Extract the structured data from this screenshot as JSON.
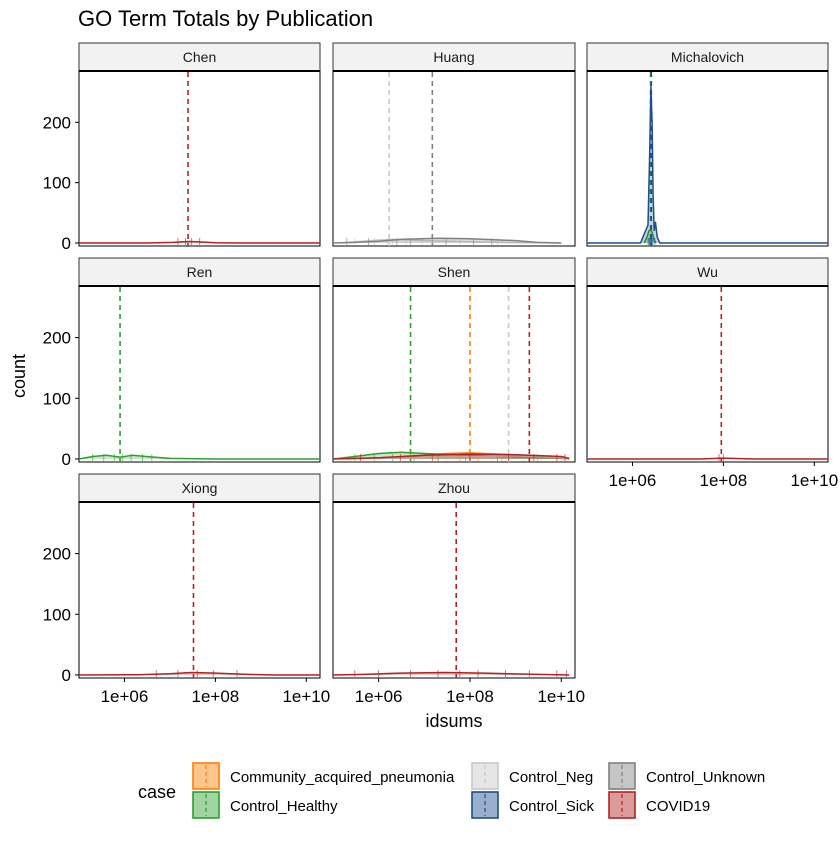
{
  "title": "GO Term Totals by Publication",
  "chart_data": {
    "type": "area",
    "subtype": "faceted density with mean lines and rug",
    "title": "GO Term Totals by Publication",
    "xlabel": "idsums",
    "ylabel": "count",
    "x_scale": "log10",
    "xlim": [
      100000,
      20000000000
    ],
    "x_ticks": [
      1000000,
      100000000,
      10000000000
    ],
    "x_tick_labels": [
      "1e+06",
      "1e+08",
      "1e+10"
    ],
    "ylim": [
      -5,
      285
    ],
    "y_ticks": [
      0,
      100,
      200
    ],
    "y_tick_labels": [
      "0",
      "100",
      "200"
    ],
    "grid": false,
    "legend": {
      "title": "case",
      "position": "bottom",
      "entries": [
        {
          "label": "Community_acquired_pneumonia",
          "color": "#FF7F00"
        },
        {
          "label": "Control_Healthy",
          "color": "#2CA02C"
        },
        {
          "label": "Control_Neg",
          "color": "#C8C8C8"
        },
        {
          "label": "Control_Sick",
          "color": "#1F4E8C"
        },
        {
          "label": "Control_Unknown",
          "color": "#808080"
        },
        {
          "label": "COVID19",
          "color": "#B22222"
        }
      ]
    },
    "facets": [
      {
        "name": "Chen",
        "series": [
          {
            "case": "COVID19",
            "mean": 25000000,
            "curve": [
              [
                100000,
                0
              ],
              [
                3000000,
                0
              ],
              [
                12000000,
                1
              ],
              [
                25000000,
                2.5
              ],
              [
                40000000,
                2
              ],
              [
                100000000,
                0.5
              ],
              [
                300000000,
                0
              ],
              [
                20000000000,
                0
              ]
            ],
            "rug": [
              15000000,
              22000000,
              30000000,
              45000000
            ]
          }
        ]
      },
      {
        "name": "Huang",
        "series": [
          {
            "case": "Control_Neg",
            "mean": 1700000,
            "curve": [
              [
                150000,
                0
              ],
              [
                300000,
                2
              ],
              [
                1000000,
                5
              ],
              [
                3000000,
                6
              ],
              [
                10000000,
                4
              ],
              [
                100000000,
                2
              ],
              [
                1000000000,
                0.5
              ],
              [
                10000000000,
                0
              ]
            ],
            "rug": [
              300000,
              800000,
              1500000,
              2000000,
              4000000,
              9000000,
              60000000,
              400000000
            ]
          },
          {
            "case": "Control_Unknown",
            "mean": 15000000,
            "curve": [
              [
                100000,
                0
              ],
              [
                300000,
                1
              ],
              [
                1000000,
                3
              ],
              [
                3000000,
                6
              ],
              [
                20000000,
                8
              ],
              [
                100000000,
                7
              ],
              [
                1000000000,
                4
              ],
              [
                3000000000,
                1
              ],
              [
                10000000000,
                0
              ]
            ],
            "rug": [
              200000,
              600000,
              2500000,
              5000000,
              15000000,
              30000000,
              120000000,
              300000000
            ]
          }
        ]
      },
      {
        "name": "Michalovich",
        "series": [
          {
            "case": "Control_Healthy",
            "mean": 2500000,
            "curve": [
              [
                1800000,
                0
              ],
              [
                2100000,
                10
              ],
              [
                2300000,
                20
              ],
              [
                2500000,
                22
              ],
              [
                2700000,
                18
              ],
              [
                3000000,
                5
              ],
              [
                3300000,
                0
              ]
            ],
            "rug": [
              2200000,
              2400000,
              2600000
            ]
          },
          {
            "case": "Control_Sick",
            "mean": 2600000,
            "curve": [
              [
                100000,
                0
              ],
              [
                1500000,
                0
              ],
              [
                2200000,
                30
              ],
              [
                2400000,
                150
              ],
              [
                2550000,
                260
              ],
              [
                2700000,
                200
              ],
              [
                2850000,
                80
              ],
              [
                3000000,
                20
              ],
              [
                3200000,
                35
              ],
              [
                3500000,
                10
              ],
              [
                4000000,
                0
              ],
              [
                20000000000,
                0
              ]
            ],
            "rug": [
              2300000,
              2450000,
              2550000,
              2650000,
              2800000,
              3100000
            ]
          }
        ]
      },
      {
        "name": "Ren",
        "series": [
          {
            "case": "Control_Healthy",
            "mean": 800000,
            "curve": [
              [
                100000,
                0
              ],
              [
                200000,
                4
              ],
              [
                400000,
                6
              ],
              [
                800000,
                3
              ],
              [
                1500000,
                6
              ],
              [
                3000000,
                4
              ],
              [
                10000000,
                1
              ],
              [
                100000000,
                0
              ],
              [
                20000000000,
                0
              ]
            ],
            "rug": [
              200000,
              350000,
              600000,
              900000,
              1400000,
              2500000,
              4000000
            ]
          }
        ]
      },
      {
        "name": "Shen",
        "series": [
          {
            "case": "Community_acquired_pneumonia",
            "mean": 100000000,
            "curve": [
              [
                200000,
                0
              ],
              [
                3000000,
                3
              ],
              [
                30000000,
                9
              ],
              [
                100000000,
                10
              ],
              [
                1000000000,
                7
              ],
              [
                10000000000,
                3
              ],
              [
                15000000000,
                0
              ]
            ],
            "rug": [
              5000000,
              20000000,
              60000000,
              150000000,
              500000000,
              3000000000
            ]
          },
          {
            "case": "Control_Healthy",
            "mean": 5000000,
            "curve": [
              [
                100000,
                0
              ],
              [
                300000,
                4
              ],
              [
                1000000,
                9
              ],
              [
                3000000,
                11
              ],
              [
                10000000,
                9
              ],
              [
                100000000,
                6
              ],
              [
                1000000000,
                3
              ],
              [
                10000000000,
                1
              ],
              [
                15000000000,
                0
              ]
            ],
            "rug": [
              300000,
              800000,
              2000000,
              6000000,
              20000000,
              80000000,
              400000000
            ]
          },
          {
            "case": "Control_Neg",
            "mean": 700000000,
            "curve": [
              [
                200000,
                0
              ],
              [
                10000000,
                2
              ],
              [
                100000000,
                4
              ],
              [
                1000000000,
                5
              ],
              [
                10000000000,
                2
              ],
              [
                15000000000,
                0
              ]
            ],
            "rug": [
              30000000,
              300000000,
              1500000000
            ]
          },
          {
            "case": "COVID19",
            "mean": 2000000000,
            "curve": [
              [
                100000,
                0
              ],
              [
                1000000,
                2
              ],
              [
                10000000,
                6
              ],
              [
                100000000,
                8
              ],
              [
                1000000000,
                7
              ],
              [
                10000000000,
                4
              ],
              [
                15000000000,
                1
              ]
            ],
            "rug": [
              400000,
              3000000,
              15000000,
              100000000,
              700000000,
              2500000000,
              8000000000,
              12000000000
            ]
          }
        ]
      },
      {
        "name": "Wu",
        "series": [
          {
            "case": "COVID19",
            "mean": 90000000,
            "curve": [
              [
                100000,
                0
              ],
              [
                30000000,
                0
              ],
              [
                70000000,
                1
              ],
              [
                90000000,
                1.5
              ],
              [
                150000000,
                1
              ],
              [
                500000000,
                0
              ],
              [
                20000000000,
                0
              ]
            ],
            "rug": [
              80000000,
              100000000
            ]
          }
        ]
      },
      {
        "name": "Xiong",
        "series": [
          {
            "case": "COVID19",
            "mean": 33000000,
            "curve": [
              [
                100000,
                0
              ],
              [
                2000000,
                0.5
              ],
              [
                10000000,
                2
              ],
              [
                30000000,
                4
              ],
              [
                100000000,
                3
              ],
              [
                500000000,
                1
              ],
              [
                2000000000,
                0
              ],
              [
                20000000000,
                0
              ]
            ],
            "rug": [
              5000000,
              15000000,
              40000000,
              90000000,
              300000000
            ]
          }
        ]
      },
      {
        "name": "Zhou",
        "series": [
          {
            "case": "COVID19",
            "mean": 50000000,
            "curve": [
              [
                100000,
                0
              ],
              [
                500000,
                1
              ],
              [
                3000000,
                3
              ],
              [
                30000000,
                4
              ],
              [
                200000000,
                3
              ],
              [
                3000000000,
                1
              ],
              [
                15000000000,
                0
              ]
            ],
            "rug": [
              300000,
              1000000,
              5000000,
              20000000,
              60000000,
              150000000,
              600000000,
              2000000000,
              8000000000,
              13000000000
            ]
          }
        ]
      }
    ]
  }
}
